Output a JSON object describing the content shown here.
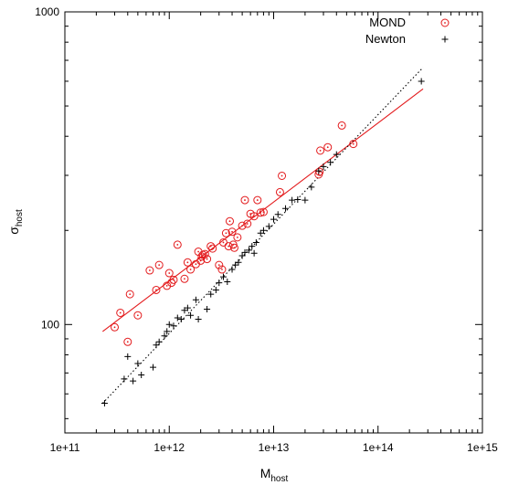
{
  "chart_data": {
    "type": "scatter",
    "xlabel": "M",
    "xlabel_sub": "host",
    "ylabel": "σ",
    "ylabel_sub": "host",
    "x_scale": "log",
    "y_scale": "log",
    "xlim": [
      100000000000.0,
      1000000000000000.0
    ],
    "ylim": [
      45,
      1000
    ],
    "x_ticks": [
      {
        "value": 100000000000.0,
        "label": "1e+11"
      },
      {
        "value": 1000000000000.0,
        "label": "1e+12"
      },
      {
        "value": 10000000000000.0,
        "label": "1e+13"
      },
      {
        "value": 100000000000000.0,
        "label": "1e+14"
      },
      {
        "value": 1000000000000000.0,
        "label": "1e+15"
      }
    ],
    "y_ticks": [
      {
        "value": 100,
        "label": "100"
      },
      {
        "value": 1000,
        "label": "1000"
      }
    ],
    "grid": false,
    "legend": "top-right",
    "series": [
      {
        "name": "MOND",
        "marker": "circle-dot",
        "color": "#e31a1c",
        "points": [
          [
            300000000000.0,
            98
          ],
          [
            340000000000.0,
            109
          ],
          [
            400000000000.0,
            88
          ],
          [
            420000000000.0,
            125
          ],
          [
            500000000000.0,
            107
          ],
          [
            650000000000.0,
            149
          ],
          [
            750000000000.0,
            129
          ],
          [
            800000000000.0,
            155
          ],
          [
            950000000000.0,
            133
          ],
          [
            1000000000000.0,
            146
          ],
          [
            1050000000000.0,
            136
          ],
          [
            1100000000000.0,
            139
          ],
          [
            1200000000000.0,
            180
          ],
          [
            1400000000000.0,
            140
          ],
          [
            1500000000000.0,
            158
          ],
          [
            1600000000000.0,
            150
          ],
          [
            1800000000000.0,
            156
          ],
          [
            1900000000000.0,
            171
          ],
          [
            2000000000000.0,
            160
          ],
          [
            2050000000000.0,
            165
          ],
          [
            2100000000000.0,
            167
          ],
          [
            2200000000000.0,
            168
          ],
          [
            2300000000000.0,
            162
          ],
          [
            2500000000000.0,
            178
          ],
          [
            2600000000000.0,
            175
          ],
          [
            3000000000000.0,
            155
          ],
          [
            3200000000000.0,
            150
          ],
          [
            3300000000000.0,
            183
          ],
          [
            3500000000000.0,
            196
          ],
          [
            3700000000000.0,
            178
          ],
          [
            3800000000000.0,
            214
          ],
          [
            4000000000000.0,
            198
          ],
          [
            4100000000000.0,
            180
          ],
          [
            4200000000000.0,
            176
          ],
          [
            4500000000000.0,
            190
          ],
          [
            5000000000000.0,
            207
          ],
          [
            5300000000000.0,
            250
          ],
          [
            5600000000000.0,
            210
          ],
          [
            6000000000000.0,
            226
          ],
          [
            6500000000000.0,
            222
          ],
          [
            7000000000000.0,
            250
          ],
          [
            7500000000000.0,
            228
          ],
          [
            8000000000000.0,
            229
          ],
          [
            11500000000000.0,
            265
          ],
          [
            12000000000000.0,
            299
          ],
          [
            27000000000000.0,
            302
          ],
          [
            27500000000000.0,
            308
          ],
          [
            28000000000000.0,
            360
          ],
          [
            33000000000000.0,
            369
          ],
          [
            45000000000000.0,
            433
          ],
          [
            58000000000000.0,
            378
          ]
        ]
      },
      {
        "name": "Newton",
        "marker": "plus",
        "color": "#000000",
        "points": [
          [
            240000000000.0,
            56
          ],
          [
            370000000000.0,
            67
          ],
          [
            400000000000.0,
            79
          ],
          [
            450000000000.0,
            66
          ],
          [
            500000000000.0,
            75
          ],
          [
            540000000000.0,
            69
          ],
          [
            700000000000.0,
            73
          ],
          [
            750000000000.0,
            86
          ],
          [
            800000000000.0,
            88
          ],
          [
            900000000000.0,
            92
          ],
          [
            950000000000.0,
            95
          ],
          [
            1000000000000.0,
            100
          ],
          [
            1100000000000.0,
            99
          ],
          [
            1200000000000.0,
            105
          ],
          [
            1300000000000.0,
            104
          ],
          [
            1400000000000.0,
            111
          ],
          [
            1500000000000.0,
            113
          ],
          [
            1600000000000.0,
            107
          ],
          [
            1800000000000.0,
            120
          ],
          [
            1900000000000.0,
            104
          ],
          [
            2300000000000.0,
            112
          ],
          [
            2500000000000.0,
            125
          ],
          [
            2800000000000.0,
            129
          ],
          [
            3000000000000.0,
            136
          ],
          [
            3300000000000.0,
            142
          ],
          [
            3600000000000.0,
            137
          ],
          [
            4000000000000.0,
            150
          ],
          [
            4300000000000.0,
            155
          ],
          [
            4600000000000.0,
            158
          ],
          [
            5000000000000.0,
            166
          ],
          [
            5300000000000.0,
            170
          ],
          [
            5800000000000.0,
            173
          ],
          [
            6200000000000.0,
            178
          ],
          [
            6500000000000.0,
            169
          ],
          [
            6800000000000.0,
            183
          ],
          [
            7500000000000.0,
            196
          ],
          [
            8000000000000.0,
            200
          ],
          [
            9000000000000.0,
            206
          ],
          [
            10000000000000.0,
            217
          ],
          [
            11000000000000.0,
            225
          ],
          [
            13000000000000.0,
            235
          ],
          [
            15000000000000.0,
            250
          ],
          [
            17000000000000.0,
            251
          ],
          [
            20000000000000.0,
            250
          ],
          [
            23000000000000.0,
            275
          ],
          [
            27000000000000.0,
            310
          ],
          [
            30000000000000.0,
            320
          ],
          [
            35000000000000.0,
            330
          ],
          [
            40000000000000.0,
            350
          ],
          [
            260000000000000.0,
            600
          ]
        ]
      }
    ],
    "fit_lines": [
      {
        "series": "MOND",
        "style": "solid",
        "color": "#e31a1c",
        "from": [
          230000000000.0,
          95
        ],
        "to": [
          270000000000000.0,
          567
        ]
      },
      {
        "series": "Newton",
        "style": "dotted",
        "color": "#000000",
        "from": [
          230000000000.0,
          56
        ],
        "to": [
          270000000000000.0,
          664
        ]
      }
    ]
  }
}
